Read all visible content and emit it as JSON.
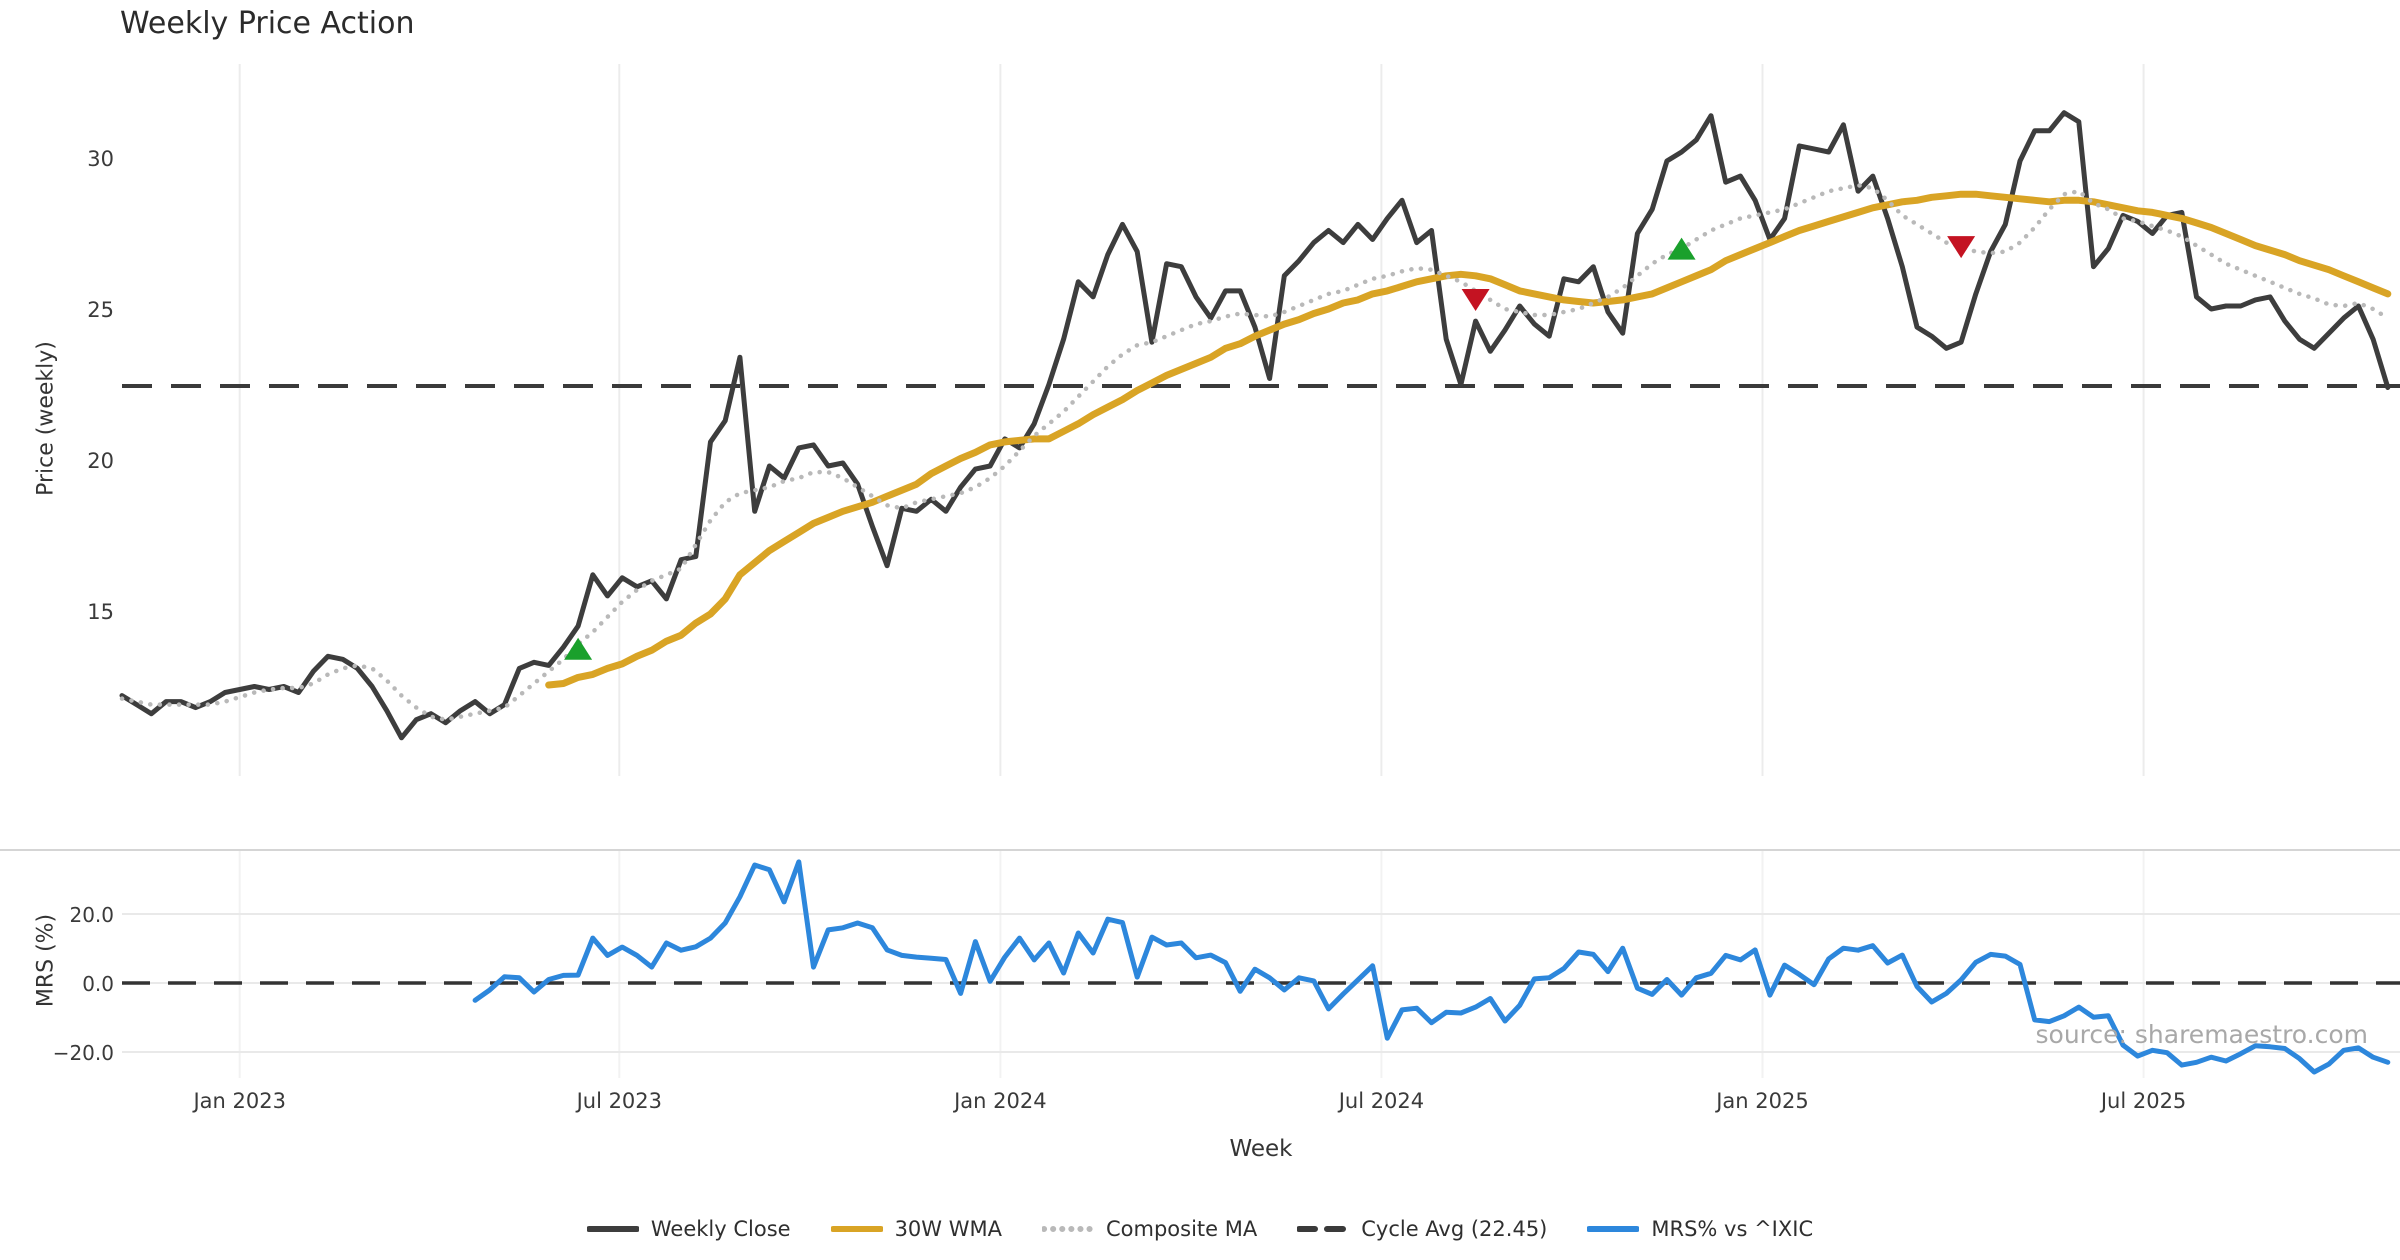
{
  "title": "Weekly Price Action",
  "source_note": "source: sharemaestro.com",
  "colors": {
    "close": "#3d3d3d",
    "wma": "#d9a425",
    "composite": "#b9b9b9",
    "cycle": "#3a3a3a",
    "mrs": "#2d87dc",
    "buy": "#1aa02c",
    "sell": "#c41322",
    "grid": "#ececec",
    "spine": "#d5d5d5",
    "tick_text": "#3a3a3a"
  },
  "legend": [
    {
      "label": "Weekly Close",
      "color": "#3d3d3d",
      "style": "solid"
    },
    {
      "label": "30W WMA",
      "color": "#d9a425",
      "style": "solid"
    },
    {
      "label": "Composite MA",
      "color": "#b9b9b9",
      "style": "dotted"
    },
    {
      "label": "Cycle Avg (22.45)",
      "color": "#3a3a3a",
      "style": "dashed"
    },
    {
      "label": "MRS% vs ^IXIC",
      "color": "#2d87dc",
      "style": "solid"
    }
  ],
  "chart_data": {
    "type": "line",
    "title": "Weekly Price Action",
    "xlabel": "Week",
    "x_axis": {
      "tick_labels": [
        "Jan 2023",
        "Jul 2023",
        "Jan 2024",
        "Jul 2024",
        "Jan 2025",
        "Jul 2025"
      ],
      "tick_weeks": [
        8.0,
        33.8,
        59.7,
        85.6,
        111.5,
        137.4
      ],
      "total_weeks": 155,
      "grid": true
    },
    "panels": [
      {
        "name": "price",
        "ylabel": "Price (weekly)",
        "ylim": [
          9.7,
          33.1
        ],
        "yticks": [
          {
            "v": 15,
            "label": "15"
          },
          {
            "v": 20,
            "label": "20"
          },
          {
            "v": 25,
            "label": "25"
          },
          {
            "v": 30,
            "label": "30"
          }
        ],
        "cycle_avg": 22.45
      },
      {
        "name": "mrs",
        "ylabel": "MRS (%)",
        "ylim": [
          -28.5,
          38.5
        ],
        "yticks": [
          {
            "v": -20,
            "label": "−20.0"
          },
          {
            "v": 0,
            "label": "0.0"
          },
          {
            "v": 20,
            "label": "20.0"
          }
        ],
        "zero_line": 0
      }
    ],
    "series": [
      {
        "name": "Weekly Close",
        "panel": "price",
        "color": "#3d3d3d",
        "style": "solid",
        "width": 5,
        "start_week": 0,
        "values": [
          12.2,
          11.9,
          11.6,
          12.0,
          12.0,
          11.8,
          12.0,
          12.3,
          12.4,
          12.5,
          12.4,
          12.5,
          12.3,
          13.0,
          13.5,
          13.4,
          13.1,
          12.5,
          11.7,
          10.8,
          11.4,
          11.6,
          11.3,
          11.7,
          12.0,
          11.6,
          11.9,
          13.1,
          13.3,
          13.2,
          13.8,
          14.5,
          16.2,
          15.5,
          16.1,
          15.8,
          16.0,
          15.4,
          16.7,
          16.8,
          20.6,
          21.3,
          23.4,
          18.3,
          19.8,
          19.4,
          20.4,
          20.5,
          19.8,
          19.9,
          19.2,
          17.8,
          16.5,
          18.4,
          18.3,
          18.7,
          18.3,
          19.1,
          19.7,
          19.8,
          20.7,
          20.4,
          21.2,
          22.5,
          24.0,
          25.9,
          25.4,
          26.8,
          27.8,
          26.9,
          23.9,
          26.5,
          26.4,
          25.4,
          24.7,
          25.6,
          25.6,
          24.4,
          22.7,
          26.1,
          26.6,
          27.2,
          27.6,
          27.2,
          27.8,
          27.3,
          28.0,
          28.6,
          27.2,
          27.6,
          24.0,
          22.5,
          24.6,
          23.6,
          24.3,
          25.1,
          24.5,
          24.1,
          26.0,
          25.9,
          26.4,
          24.9,
          24.2,
          27.5,
          28.3,
          29.9,
          30.2,
          30.6,
          31.4,
          29.2,
          29.4,
          28.6,
          27.3,
          28.0,
          30.4,
          30.3,
          30.2,
          31.1,
          28.9,
          29.4,
          28.0,
          26.4,
          24.4,
          24.1,
          23.7,
          23.9,
          25.5,
          26.9,
          27.8,
          29.9,
          30.9,
          30.9,
          31.5,
          31.2,
          26.4,
          27.0,
          28.1,
          27.9,
          27.5,
          28.1,
          28.2,
          25.4,
          25.0,
          25.1,
          25.1,
          25.3,
          25.4,
          24.6,
          24.0,
          23.7,
          24.2,
          24.7,
          25.1,
          24.0,
          22.4
        ]
      },
      {
        "name": "30W WMA",
        "panel": "price",
        "color": "#d9a425",
        "style": "solid",
        "width": 7,
        "start_week": 29,
        "values": [
          12.55,
          12.6,
          12.8,
          12.9,
          13.1,
          13.25,
          13.5,
          13.7,
          14.0,
          14.2,
          14.6,
          14.9,
          15.4,
          16.2,
          16.6,
          17.0,
          17.3,
          17.6,
          17.9,
          18.1,
          18.3,
          18.45,
          18.6,
          18.8,
          19.0,
          19.2,
          19.55,
          19.8,
          20.05,
          20.25,
          20.5,
          20.6,
          20.65,
          20.7,
          20.7,
          20.95,
          21.2,
          21.5,
          21.75,
          22.0,
          22.3,
          22.55,
          22.8,
          23.0,
          23.2,
          23.4,
          23.7,
          23.85,
          24.1,
          24.3,
          24.5,
          24.65,
          24.85,
          25.0,
          25.2,
          25.3,
          25.5,
          25.6,
          25.75,
          25.9,
          26.0,
          26.1,
          26.15,
          26.1,
          26.0,
          25.8,
          25.6,
          25.5,
          25.4,
          25.3,
          25.25,
          25.2,
          25.25,
          25.3,
          25.4,
          25.5,
          25.7,
          25.9,
          26.1,
          26.3,
          26.6,
          26.8,
          27.0,
          27.2,
          27.4,
          27.6,
          27.75,
          27.9,
          28.05,
          28.2,
          28.35,
          28.45,
          28.55,
          28.6,
          28.7,
          28.75,
          28.8,
          28.8,
          28.75,
          28.7,
          28.65,
          28.6,
          28.55,
          28.6,
          28.6,
          28.55,
          28.45,
          28.35,
          28.25,
          28.2,
          28.1,
          28.0,
          27.85,
          27.7,
          27.5,
          27.3,
          27.1,
          26.95,
          26.8,
          26.6,
          26.45,
          26.3,
          26.1,
          25.9,
          25.7,
          25.5
        ]
      },
      {
        "name": "Composite MA",
        "panel": "price",
        "color": "#b9b9b9",
        "style": "dotted",
        "width": 4.5,
        "start_week": 0,
        "values": [
          12.1,
          12.0,
          11.9,
          11.9,
          11.9,
          11.9,
          11.9,
          12.0,
          12.15,
          12.3,
          12.4,
          12.45,
          12.45,
          12.6,
          12.9,
          13.1,
          13.2,
          13.1,
          12.7,
          12.2,
          11.8,
          11.5,
          11.4,
          11.5,
          11.6,
          11.7,
          11.8,
          12.2,
          12.6,
          13.0,
          13.4,
          13.9,
          14.3,
          14.8,
          15.3,
          15.7,
          16.0,
          16.2,
          16.4,
          17.2,
          18.0,
          18.6,
          18.9,
          19.0,
          19.1,
          19.3,
          19.4,
          19.6,
          19.6,
          19.4,
          19.1,
          18.8,
          18.5,
          18.4,
          18.6,
          18.7,
          18.8,
          18.9,
          19.1,
          19.4,
          19.8,
          20.3,
          20.8,
          21.2,
          21.6,
          22.1,
          22.6,
          23.1,
          23.5,
          23.8,
          23.9,
          24.1,
          24.3,
          24.5,
          24.6,
          24.75,
          24.85,
          24.8,
          24.75,
          24.9,
          25.1,
          25.3,
          25.5,
          25.6,
          25.8,
          26.0,
          26.1,
          26.25,
          26.35,
          26.3,
          26.1,
          25.9,
          25.6,
          25.3,
          25.0,
          24.9,
          24.8,
          24.8,
          24.9,
          25.0,
          25.2,
          25.4,
          25.7,
          26.1,
          26.5,
          26.8,
          27.0,
          27.3,
          27.6,
          27.8,
          28.0,
          28.1,
          28.2,
          28.3,
          28.5,
          28.7,
          28.9,
          29.0,
          29.1,
          29.0,
          28.6,
          28.1,
          27.8,
          27.5,
          27.2,
          27.05,
          26.9,
          26.85,
          26.9,
          27.2,
          27.7,
          28.3,
          28.8,
          28.9,
          28.5,
          28.3,
          28.0,
          27.9,
          27.75,
          27.6,
          27.4,
          27.1,
          26.8,
          26.5,
          26.3,
          26.1,
          25.9,
          25.7,
          25.5,
          25.35,
          25.15,
          25.1,
          25.2,
          25.0,
          24.7
        ]
      },
      {
        "name": "Cycle Avg (22.45)",
        "panel": "price",
        "color": "#3a3a3a",
        "style": "dashed",
        "width": 4,
        "value": 22.45
      },
      {
        "name": "MRS% vs ^IXIC",
        "panel": "mrs",
        "color": "#2d87dc",
        "style": "solid",
        "width": 5,
        "start_week": 24,
        "values": [
          -5.0,
          -2.0,
          1.8,
          1.5,
          -2.6,
          1.0,
          2.2,
          2.3,
          13.0,
          8.0,
          10.4,
          8.0,
          4.6,
          11.6,
          9.5,
          10.5,
          13.0,
          17.4,
          25.0,
          34.2,
          32.8,
          23.5,
          35.1,
          4.6,
          15.4,
          16.0,
          17.4,
          16.0,
          9.6,
          8.0,
          7.5,
          7.2,
          6.8,
          -3.0,
          12.0,
          0.5,
          7.5,
          13.0,
          6.7,
          11.6,
          2.9,
          14.5,
          8.7,
          18.5,
          17.5,
          1.7,
          13.3,
          11.0,
          11.6,
          7.3,
          8.1,
          5.9,
          -2.4,
          4.0,
          1.5,
          -2.0,
          1.5,
          0.6,
          -7.5,
          -3.2,
          0.9,
          5.0,
          -16.0,
          -7.8,
          -7.3,
          -11.5,
          -8.5,
          -8.7,
          -7.0,
          -4.5,
          -11.0,
          -6.5,
          1.2,
          1.5,
          4.2,
          9.0,
          8.3,
          3.3,
          10.1,
          -1.5,
          -3.3,
          1.0,
          -3.5,
          1.5,
          2.8,
          8.0,
          6.7,
          9.6,
          -3.5,
          5.2,
          2.5,
          -0.5,
          7.0,
          10.1,
          9.5,
          10.8,
          5.8,
          8.1,
          -1.0,
          -5.5,
          -3.0,
          0.9,
          6.0,
          8.3,
          7.8,
          5.4,
          -10.7,
          -11.2,
          -9.5,
          -7.0,
          -9.9,
          -9.5,
          -18.0,
          -21.2,
          -19.5,
          -20.2,
          -23.8,
          -23.0,
          -21.5,
          -22.6,
          -20.5,
          -18.2,
          -18.5,
          -19.0,
          -21.9,
          -25.8,
          -23.5,
          -19.5,
          -18.8,
          -21.5,
          -23.0
        ]
      }
    ],
    "markers": {
      "buy": {
        "shape": "triangle-up",
        "color": "#1aa02c",
        "points": [
          {
            "week": 31,
            "value": 13.75
          },
          {
            "week": 106,
            "value": 27.0
          }
        ]
      },
      "sell": {
        "shape": "triangle-down",
        "color": "#c41322",
        "points": [
          {
            "week": 92,
            "value": 25.3
          },
          {
            "week": 125,
            "value": 27.05
          }
        ]
      }
    }
  }
}
